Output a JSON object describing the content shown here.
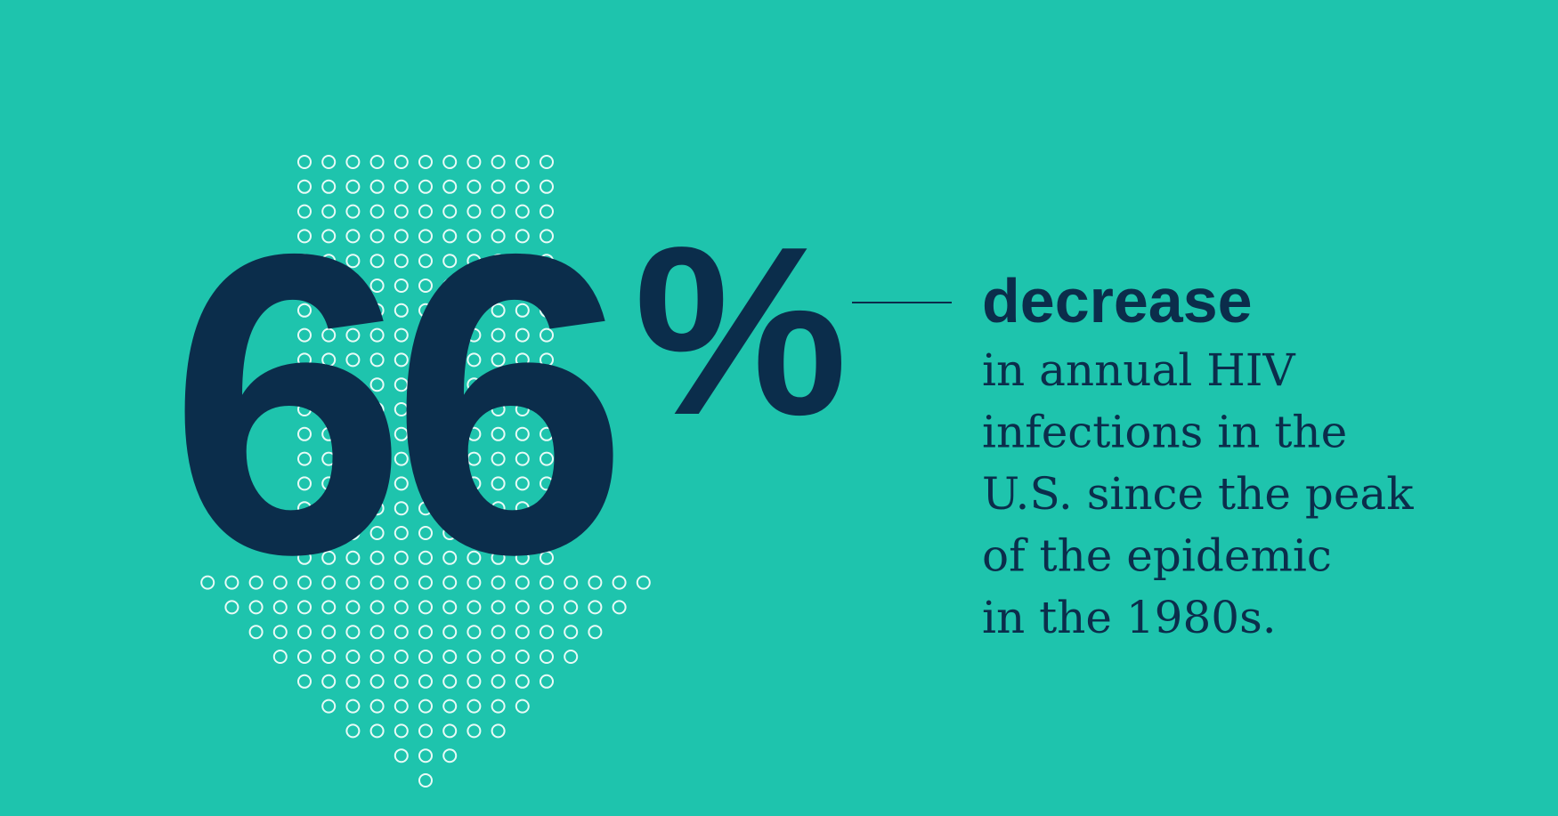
{
  "stat": {
    "number": "66",
    "symbol": "%"
  },
  "headline": "decrease",
  "description": [
    "in annual HIV",
    "infections in the",
    "U.S. since the peak",
    "of the epidemic",
    "in the 1980s."
  ]
}
